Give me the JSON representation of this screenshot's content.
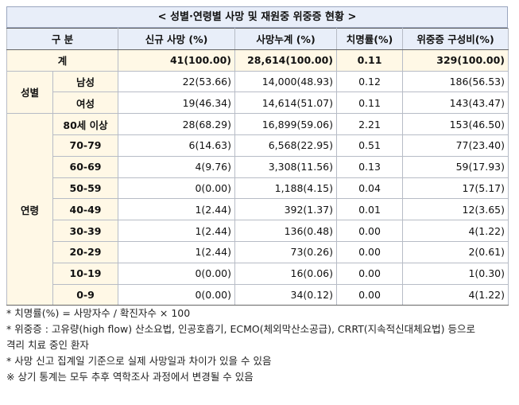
{
  "title": "< 성별·연령별 사망 및 재원중 위중증 현황 >",
  "headers": {
    "category": "구 분",
    "new_deaths": "신규 사망     (%)",
    "cumulative": "사망누계     (%)",
    "fatality": "치명률(%)",
    "severe": "위중증   구성비(%)"
  },
  "total": {
    "label": "계",
    "new_deaths": "41(100.00)",
    "cumulative": "28,614(100.00)",
    "fatality": "0.11",
    "severe": "329(100.00)"
  },
  "gender": {
    "group_label": "성별",
    "rows": [
      {
        "label": "남성",
        "new_deaths": "22(53.66)",
        "cumulative": "14,000(48.93)",
        "fatality": "0.12",
        "severe": "186(56.53)"
      },
      {
        "label": "여성",
        "new_deaths": "19(46.34)",
        "cumulative": "14,614(51.07)",
        "fatality": "0.11",
        "severe": "143(43.47)"
      }
    ]
  },
  "age": {
    "group_label": "연령",
    "rows": [
      {
        "label": "80세 이상",
        "new_deaths": "28(68.29)",
        "cumulative": "16,899(59.06)",
        "fatality": "2.21",
        "severe": "153(46.50)"
      },
      {
        "label": "70-79",
        "new_deaths": "6(14.63)",
        "cumulative": "6,568(22.95)",
        "fatality": "0.51",
        "severe": "77(23.40)"
      },
      {
        "label": "60-69",
        "new_deaths": "4(9.76)",
        "cumulative": "3,308(11.56)",
        "fatality": "0.13",
        "severe": "59(17.93)"
      },
      {
        "label": "50-59",
        "new_deaths": "0(0.00)",
        "cumulative": "1,188(4.15)",
        "fatality": "0.04",
        "severe": "17(5.17)"
      },
      {
        "label": "40-49",
        "new_deaths": "1(2.44)",
        "cumulative": "392(1.37)",
        "fatality": "0.01",
        "severe": "12(3.65)"
      },
      {
        "label": "30-39",
        "new_deaths": "1(2.44)",
        "cumulative": "136(0.48)",
        "fatality": "0.00",
        "severe": "4(1.22)"
      },
      {
        "label": "20-29",
        "new_deaths": "1(2.44)",
        "cumulative": "73(0.26)",
        "fatality": "0.00",
        "severe": "2(0.61)"
      },
      {
        "label": "10-19",
        "new_deaths": "0(0.00)",
        "cumulative": "16(0.06)",
        "fatality": "0.00",
        "severe": "1(0.30)"
      },
      {
        "label": "0-9",
        "new_deaths": "0(0.00)",
        "cumulative": "34(0.12)",
        "fatality": "0.00",
        "severe": "4(1.22)"
      }
    ]
  },
  "notes": [
    "* 치명률(%) = 사망자수 / 확진자수 × 100",
    "* 위중증 : 고유량(high flow) 산소요법, 인공호흡기, ECMO(체외막산소공급), CRRT(지속적신대체요법) 등으로",
    "격리 치료 중인 환자",
    "* 사망 신고 집계일 기준으로 실제 사망일과 차이가 있을 수 있음",
    "※ 상기 통계는 모두 추후 역학조사 과정에서 변경될 수 있음"
  ]
}
